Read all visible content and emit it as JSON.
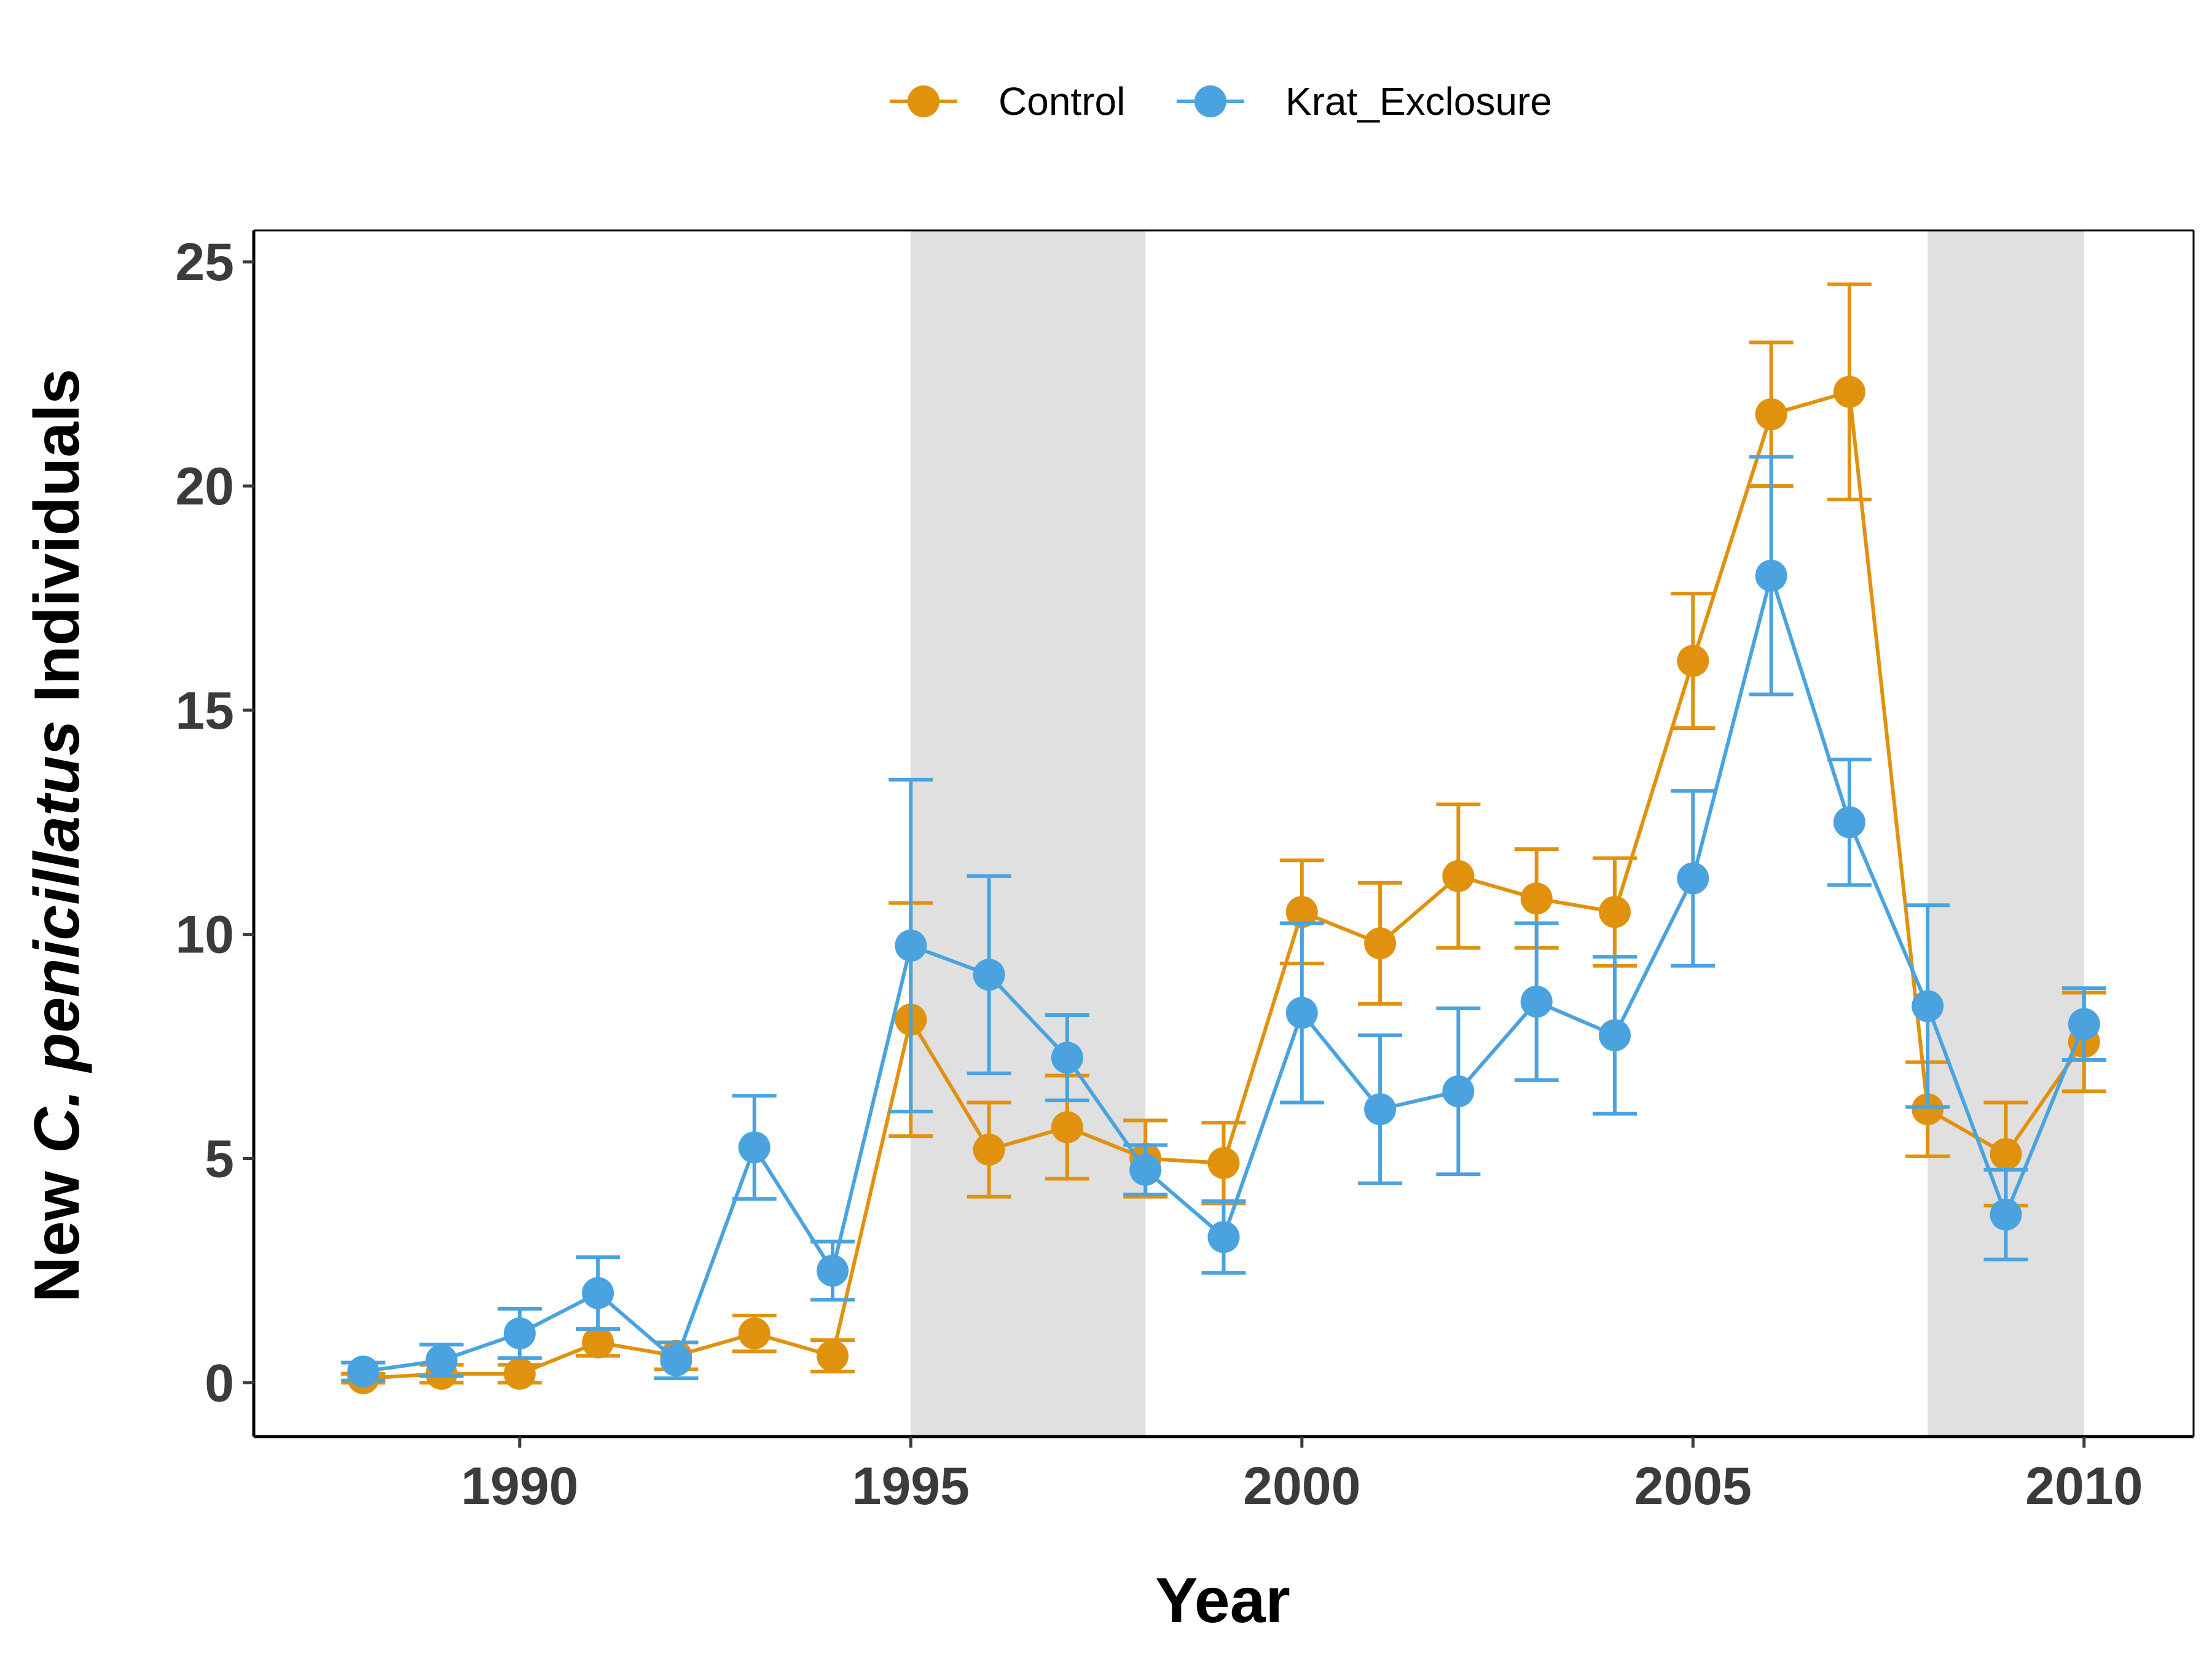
{
  "chart_data": {
    "type": "line",
    "xlabel": "Year",
    "ylabel": {
      "prefix": "New ",
      "italic": "C. penicillatus",
      "suffix": " Individuals"
    },
    "xlim": [
      1986.6,
      2011.4
    ],
    "ylim": [
      -1.2,
      25.7
    ],
    "x_ticks": [
      1990,
      1995,
      2000,
      2005,
      2010
    ],
    "y_ticks": [
      0,
      5,
      10,
      15,
      20,
      25
    ],
    "grid": false,
    "legend_position": "top",
    "shaded_periods": [
      [
        1995,
        1998
      ],
      [
        2008,
        2010
      ]
    ],
    "shade_color": "#e0e0e0",
    "series": [
      {
        "name": "Control",
        "color": "#e0920f",
        "x": [
          1988,
          1989,
          1990,
          1991,
          1992,
          1993,
          1994,
          1995,
          1996,
          1997,
          1998,
          1999,
          2000,
          2001,
          2002,
          2003,
          2004,
          2005,
          2006,
          2007,
          2008,
          2009,
          2010
        ],
        "y": [
          0.1,
          0.2,
          0.2,
          0.9,
          0.6,
          1.1,
          0.6,
          8.1,
          5.2,
          5.7,
          5.0,
          4.9,
          10.5,
          9.8,
          11.3,
          10.8,
          10.5,
          16.1,
          21.6,
          22.1,
          6.1,
          5.1,
          7.6
        ],
        "err": [
          0.1,
          0.2,
          0.2,
          0.3,
          0.3,
          0.4,
          0.35,
          2.6,
          1.05,
          1.15,
          0.85,
          0.9,
          1.15,
          1.35,
          1.6,
          1.1,
          1.2,
          1.5,
          1.6,
          2.4,
          1.05,
          1.15,
          1.1
        ]
      },
      {
        "name": "Krat_Exclosure",
        "color": "#4aa3df",
        "x": [
          1988,
          1989,
          1990,
          1991,
          1992,
          1993,
          1994,
          1995,
          1996,
          1997,
          1998,
          1999,
          2000,
          2001,
          2002,
          2003,
          2004,
          2005,
          2006,
          2007,
          2008,
          2009,
          2010
        ],
        "y": [
          0.25,
          0.5,
          1.1,
          2.0,
          0.5,
          5.25,
          2.5,
          9.75,
          9.1,
          7.25,
          4.75,
          3.25,
          8.25,
          6.1,
          6.5,
          8.5,
          7.75,
          11.25,
          18.0,
          12.5,
          8.4,
          3.75,
          8.0
        ],
        "err": [
          0.2,
          0.35,
          0.55,
          0.8,
          0.4,
          1.15,
          0.65,
          3.7,
          2.2,
          0.95,
          0.55,
          0.8,
          2.0,
          1.65,
          1.85,
          1.75,
          1.75,
          1.95,
          2.65,
          1.4,
          2.25,
          1.0,
          0.8
        ]
      }
    ]
  }
}
